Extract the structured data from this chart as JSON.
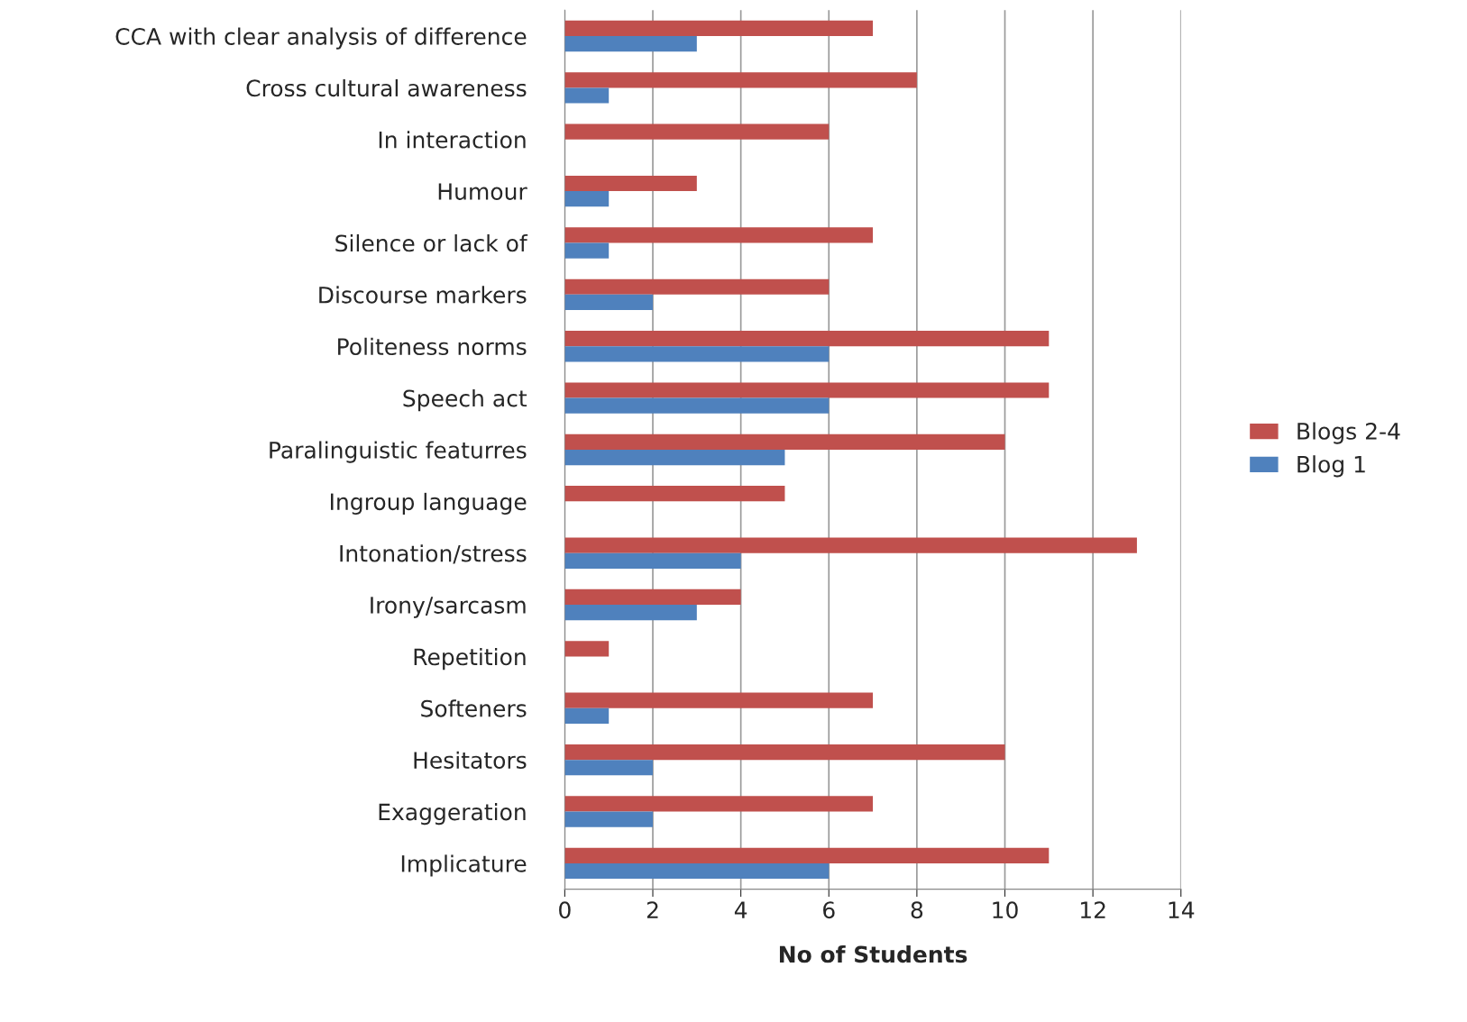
{
  "chart_data": {
    "type": "bar",
    "orientation": "horizontal",
    "xlabel": "No of Students",
    "categories": [
      "CCA with clear analysis of difference",
      "Cross cultural awareness",
      "In interaction",
      "Humour",
      "Silence or lack of",
      "Discourse markers",
      "Politeness norms",
      "Speech act",
      "Paralinguistic featurres",
      "Ingroup language",
      "Intonation/stress",
      "Irony/sarcasm",
      "Repetition",
      "Softeners",
      "Hesitators",
      "Exaggeration",
      "Implicature"
    ],
    "series": [
      {
        "name": "Blogs 2-4",
        "color": "#c0504d",
        "values": [
          7,
          8,
          6,
          3,
          7,
          6,
          11,
          11,
          10,
          5,
          13,
          4,
          1,
          7,
          10,
          7,
          11
        ]
      },
      {
        "name": "Blog 1",
        "color": "#4f81bd",
        "values": [
          3,
          1,
          null,
          1,
          1,
          2,
          6,
          6,
          5,
          null,
          4,
          3,
          null,
          1,
          2,
          2,
          6
        ]
      }
    ],
    "xlim": [
      0,
      14
    ],
    "xticks": [
      0,
      2,
      4,
      6,
      8,
      10,
      12,
      14
    ],
    "grid": "x",
    "legend": "right"
  }
}
